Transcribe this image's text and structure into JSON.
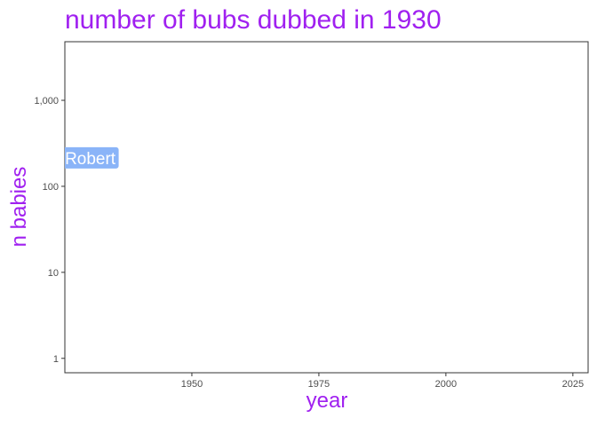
{
  "chart_data": {
    "type": "scatter",
    "title": "number of bubs dubbed in 1930",
    "xlabel": "year",
    "ylabel": "n babies",
    "x_scale": "linear",
    "y_scale": "log10",
    "xlim": [
      1925,
      2028
    ],
    "ylim": [
      0.68,
      4800
    ],
    "x_ticks": [
      1950,
      1975,
      2000,
      2025
    ],
    "x_tick_labels": [
      "1950",
      "1975",
      "2000",
      "2025"
    ],
    "y_ticks": [
      1,
      10,
      100,
      1000
    ],
    "y_tick_labels": [
      "1",
      "10",
      "100",
      "1,000"
    ],
    "grid": false,
    "points": [
      {
        "label": "Robert",
        "x": 1930,
        "y": 214
      }
    ],
    "colors": {
      "title": "#A020F0",
      "label_fill": "#8AB4F8",
      "label_text": "#ffffff"
    }
  }
}
